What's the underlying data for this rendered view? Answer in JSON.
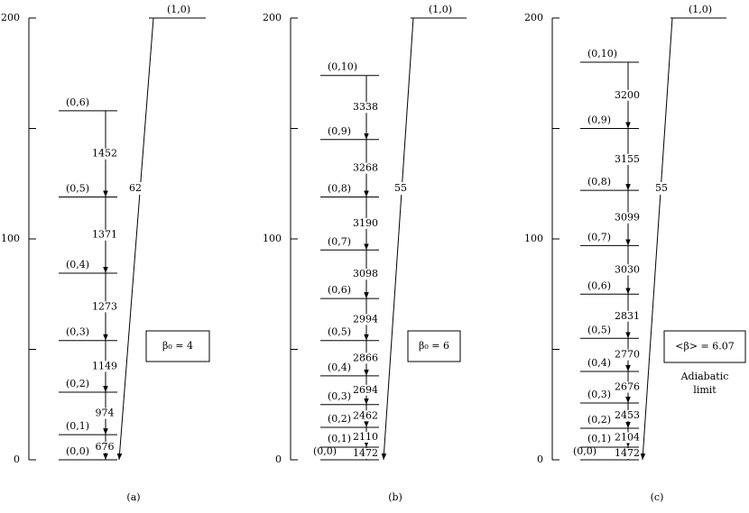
{
  "panels": [
    {
      "caption": "(a)",
      "box": "β₀ = 4",
      "ylim": [
        0,
        200
      ],
      "yticks": [
        0,
        100,
        200
      ],
      "minor_yticks": [
        50,
        150
      ],
      "top_level": {
        "label": "(1,0)",
        "energy": 200
      },
      "direct_transition": 62,
      "levels": [
        {
          "label": "(0,6)",
          "energy": 158
        },
        {
          "label": "(0,5)",
          "energy": 119
        },
        {
          "label": "(0,4)",
          "energy": 84.5
        },
        {
          "label": "(0,3)",
          "energy": 54
        },
        {
          "label": "(0,2)",
          "energy": 30.6
        },
        {
          "label": "(0,1)",
          "energy": 11.4
        },
        {
          "label": "(0,0)",
          "energy": 0
        }
      ],
      "transitions": [
        1452,
        1371,
        1273,
        1149,
        974,
        676
      ]
    },
    {
      "caption": "(b)",
      "box": "β₀ = 6",
      "ylim": [
        0,
        200
      ],
      "yticks": [
        0,
        100,
        200
      ],
      "minor_yticks": [
        50,
        150
      ],
      "top_level": {
        "label": "(1,0)",
        "energy": 200
      },
      "direct_transition": 55,
      "levels": [
        {
          "label": "(0,10)",
          "energy": 174
        },
        {
          "label": "(0,9)",
          "energy": 145
        },
        {
          "label": "(0,8)",
          "energy": 119
        },
        {
          "label": "(0,7)",
          "energy": 95
        },
        {
          "label": "(0,6)",
          "energy": 73
        },
        {
          "label": "(0,5)",
          "energy": 54
        },
        {
          "label": "(0,4)",
          "energy": 38
        },
        {
          "label": "(0,3)",
          "energy": 25
        },
        {
          "label": "(0,2)",
          "energy": 14.7
        },
        {
          "label": "(0,1)",
          "energy": 5.7
        },
        {
          "label": "(0,0)",
          "energy": 0
        }
      ],
      "transitions": [
        3338,
        3268,
        3190,
        3098,
        2994,
        2866,
        2694,
        2462,
        2110,
        1472
      ]
    },
    {
      "caption": "(c)",
      "box": "<β> = 6.07",
      "note": [
        "Adiabatic",
        "limit"
      ],
      "ylim": [
        0,
        200
      ],
      "yticks": [
        0,
        100,
        200
      ],
      "minor_yticks": [
        50,
        150
      ],
      "top_level": {
        "label": "(1,0)",
        "energy": 200
      },
      "direct_transition": 55,
      "levels": [
        {
          "label": "(0,10)",
          "energy": 180
        },
        {
          "label": "(0,9)",
          "energy": 150
        },
        {
          "label": "(0,8)",
          "energy": 122
        },
        {
          "label": "(0,7)",
          "energy": 97
        },
        {
          "label": "(0,6)",
          "energy": 75
        },
        {
          "label": "(0,5)",
          "energy": 55
        },
        {
          "label": "(0,4)",
          "energy": 40
        },
        {
          "label": "(0,3)",
          "energy": 25.7
        },
        {
          "label": "(0,2)",
          "energy": 14.3
        },
        {
          "label": "(0,1)",
          "energy": 5.7
        },
        {
          "label": "(0,0)",
          "energy": 0
        }
      ],
      "transitions": [
        3200,
        3155,
        3099,
        3030,
        2831,
        2770,
        2676,
        2453,
        2104,
        1472
      ]
    }
  ]
}
